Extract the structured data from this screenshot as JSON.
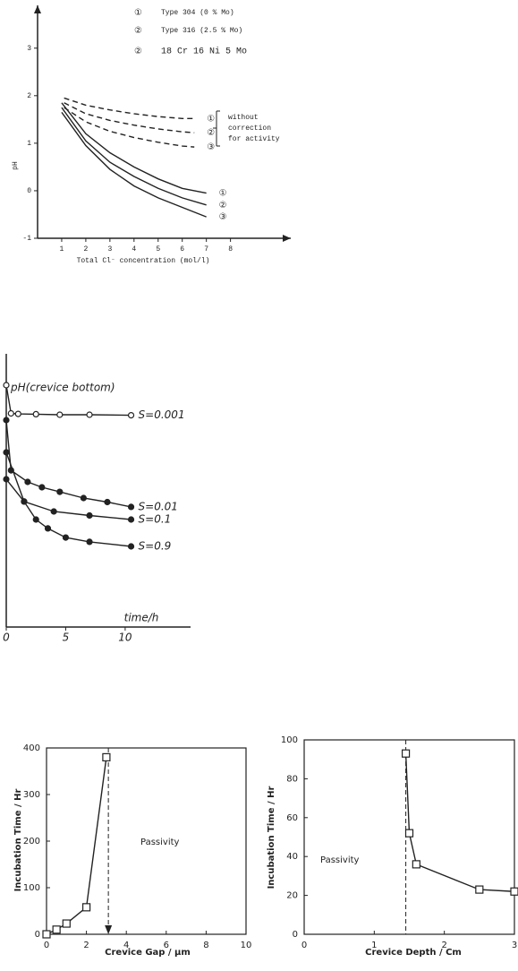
{
  "chart_data": [
    {
      "type": "line",
      "xlabel": "Total Cl⁻ concentration (mol/l)",
      "ylabel": "pH",
      "xlim": [
        0,
        10.5
      ],
      "ylim": [
        -1,
        3.9
      ],
      "xticks": [
        1,
        2,
        3,
        4,
        5,
        6,
        7,
        8
      ],
      "yticks": [
        -1,
        0,
        1,
        2,
        3
      ],
      "legend": [
        {
          "symbol": "①",
          "label": "Type 304 (0 % Mo)"
        },
        {
          "symbol": "②",
          "label": "Type 316 (2.5 % Mo)"
        },
        {
          "symbol": "②",
          "label": "18 Cr 16 Ni 5 Mo"
        }
      ],
      "annotation": [
        "without",
        "correction",
        "for activity"
      ],
      "series": [
        {
          "name": "①",
          "dash": true,
          "marker": "none",
          "x": [
            1.1,
            2,
            3,
            4,
            5,
            6,
            6.5
          ],
          "values": [
            1.95,
            1.8,
            1.7,
            1.62,
            1.56,
            1.52,
            1.52
          ]
        },
        {
          "name": "②",
          "dash": true,
          "marker": "none",
          "x": [
            1.1,
            2,
            3,
            4,
            5,
            6,
            6.5
          ],
          "values": [
            1.85,
            1.62,
            1.48,
            1.38,
            1.3,
            1.24,
            1.22
          ]
        },
        {
          "name": "③",
          "dash": true,
          "marker": "none",
          "x": [
            1.1,
            2,
            3,
            4,
            5,
            6,
            6.5
          ],
          "values": [
            1.75,
            1.45,
            1.25,
            1.12,
            1.02,
            0.94,
            0.92
          ]
        },
        {
          "name": "①",
          "dash": false,
          "marker": "none",
          "x": [
            1,
            2,
            3,
            4,
            5,
            6,
            7
          ],
          "values": [
            1.85,
            1.2,
            0.8,
            0.5,
            0.25,
            0.05,
            -0.05
          ]
        },
        {
          "name": "②",
          "dash": false,
          "marker": "none",
          "x": [
            1,
            2,
            3,
            4,
            5,
            6,
            7
          ],
          "values": [
            1.75,
            1.05,
            0.6,
            0.3,
            0.05,
            -0.15,
            -0.3
          ]
        },
        {
          "name": "③",
          "dash": false,
          "marker": "none",
          "x": [
            1,
            2,
            3,
            4,
            5,
            6,
            7
          ],
          "values": [
            1.65,
            0.95,
            0.45,
            0.1,
            -0.15,
            -0.35,
            -0.55
          ]
        }
      ]
    },
    {
      "type": "line",
      "xlabel": "time/h",
      "ylabel": "pH(crevice bottom)",
      "xlim": [
        0,
        15.5
      ],
      "ylim": [
        0,
        10
      ],
      "xticks": [
        0,
        5,
        10
      ],
      "series": [
        {
          "name": "S=0.001",
          "dash": false,
          "marker": "open-circle",
          "x": [
            0,
            0.4,
            1,
            2.5,
            4.5,
            7,
            10.5
          ],
          "values": [
            9.0,
            7.95,
            7.93,
            7.92,
            7.9,
            7.9,
            7.88
          ]
        },
        {
          "name": "S=0.01",
          "dash": false,
          "marker": "filled-circle",
          "x": [
            0,
            0.4,
            1.8,
            3,
            4.5,
            6.5,
            8.5,
            10.5
          ],
          "values": [
            7.7,
            5.83,
            5.4,
            5.2,
            5.03,
            4.8,
            4.65,
            4.47
          ]
        },
        {
          "name": "S=0.1",
          "dash": false,
          "marker": "filled-circle",
          "x": [
            0,
            1.5,
            4,
            7,
            10.5
          ],
          "values": [
            6.5,
            4.67,
            4.3,
            4.15,
            4.0
          ]
        },
        {
          "name": "S=0.9",
          "dash": false,
          "marker": "filled-circle",
          "x": [
            0,
            1.5,
            2.5,
            3.5,
            5,
            7,
            10.5
          ],
          "values": [
            5.5,
            4.67,
            4.0,
            3.67,
            3.33,
            3.17,
            3.0
          ]
        }
      ]
    },
    {
      "type": "line",
      "xlabel": "Crevice  Gap / μm",
      "ylabel": "Incubation  Time  / Hr",
      "xlim": [
        0,
        10
      ],
      "ylim": [
        0,
        400
      ],
      "xticks": [
        0,
        2,
        4,
        6,
        8,
        10
      ],
      "yticks": [
        0,
        100,
        200,
        300,
        400
      ],
      "annotation": [
        "Passivity"
      ],
      "vline": 3.1,
      "series": [
        {
          "dash": false,
          "marker": "open-square",
          "x": [
            0,
            0.5,
            1,
            2,
            3
          ],
          "values": [
            0,
            10,
            23,
            58,
            380
          ]
        }
      ]
    },
    {
      "type": "line",
      "xlabel": "Crevice  Depth / Cm",
      "ylabel": "Incubation  Time  /  Hr",
      "xlim": [
        0,
        3
      ],
      "ylim": [
        0,
        100
      ],
      "xticks": [
        0,
        1,
        2,
        3
      ],
      "yticks": [
        0,
        20,
        40,
        60,
        80,
        100
      ],
      "annotation": [
        "Passivity"
      ],
      "vline": 1.45,
      "series": [
        {
          "dash": false,
          "marker": "open-square",
          "x": [
            1.45,
            1.5,
            1.6,
            2.5,
            3
          ],
          "values": [
            93,
            52,
            36,
            23,
            22
          ]
        }
      ]
    }
  ]
}
